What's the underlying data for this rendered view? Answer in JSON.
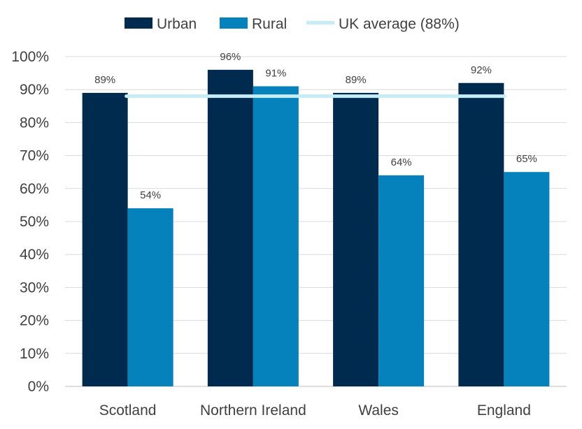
{
  "chart_data": {
    "type": "bar",
    "categories": [
      "Scotland",
      "Northern Ireland",
      "Wales",
      "England"
    ],
    "series": [
      {
        "name": "Urban",
        "values": [
          89,
          96,
          89,
          92
        ],
        "color": "#002b4f"
      },
      {
        "name": "Rural",
        "values": [
          54,
          91,
          64,
          65
        ],
        "color": "#0582bc"
      }
    ],
    "reference_line": {
      "name": "UK average (88%)",
      "value": 88,
      "color": "#c6ecf8"
    },
    "ylim": [
      0,
      100
    ],
    "yticks": [
      0,
      10,
      20,
      30,
      40,
      50,
      60,
      70,
      80,
      90,
      100
    ],
    "ytick_labels": [
      "0%",
      "10%",
      "20%",
      "30%",
      "40%",
      "50%",
      "60%",
      "70%",
      "80%",
      "90%",
      "100%"
    ],
    "data_labels": [
      [
        "89%",
        "96%",
        "89%",
        "92%"
      ],
      [
        "54%",
        "91%",
        "64%",
        "65%"
      ]
    ],
    "grid": true,
    "legend_position": "top"
  }
}
